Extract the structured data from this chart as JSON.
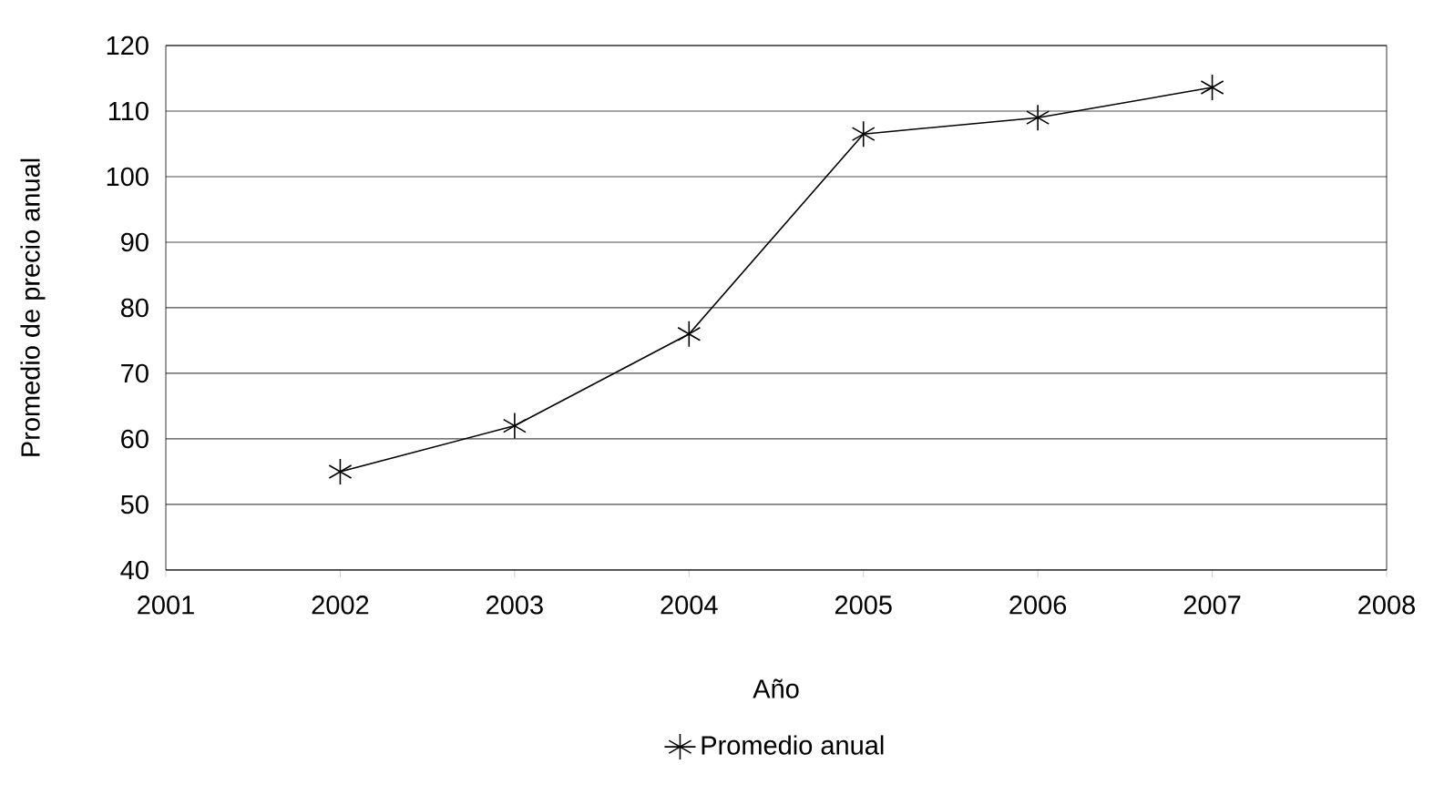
{
  "chart_data": {
    "type": "line",
    "xlabel": "Año",
    "ylabel": "Promedio de precio anual",
    "x": [
      2002,
      2003,
      2004,
      2005,
      2006,
      2007
    ],
    "series": [
      {
        "name": "Promedio anual",
        "color": "#000000",
        "values": [
          55,
          62,
          76,
          106.5,
          109,
          113.6
        ]
      }
    ],
    "xlim": [
      2001,
      2008
    ],
    "xticks": [
      2001,
      2002,
      2003,
      2004,
      2005,
      2006,
      2007,
      2008
    ],
    "ylim": [
      40,
      120
    ],
    "yticks": [
      40,
      50,
      60,
      70,
      80,
      90,
      100,
      110,
      120
    ],
    "grid": "y",
    "legend": "bottom",
    "marker": "cross",
    "line_style": "solid"
  }
}
